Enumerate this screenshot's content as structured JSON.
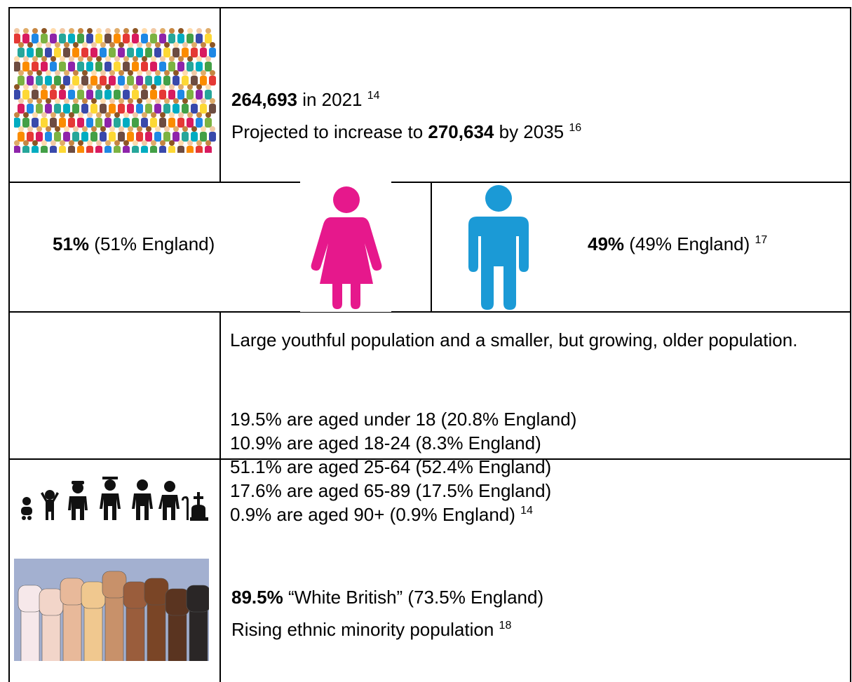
{
  "population": {
    "current": {
      "value": "264,693",
      "text": "in 2021",
      "ref": "14"
    },
    "projection": {
      "prefix": "Projected to increase to",
      "value": "270,634",
      "text": "by 2035",
      "ref": "16"
    }
  },
  "sex": {
    "female": {
      "value": "51%",
      "text": "(51% England)"
    },
    "male": {
      "value": "49%",
      "text": "(49% England)",
      "ref": "17"
    }
  },
  "age": {
    "summary": "Large youthful population and a smaller, but growing, older population.",
    "groups": [
      "19.5% are aged under 18 (20.8% England)",
      "10.9% are aged 18-24 (8.3% England)",
      "51.1% are aged 25-64 (52.4% England)",
      "17.6% are aged 65-89 (17.5% England)",
      "0.9% are aged 90+ (0.9% England)"
    ],
    "ref": "14"
  },
  "ethnicity": {
    "value": "89.5%",
    "text": "“White British” (73.5% England)",
    "note": "Rising ethnic minority population",
    "ref": "18"
  }
}
